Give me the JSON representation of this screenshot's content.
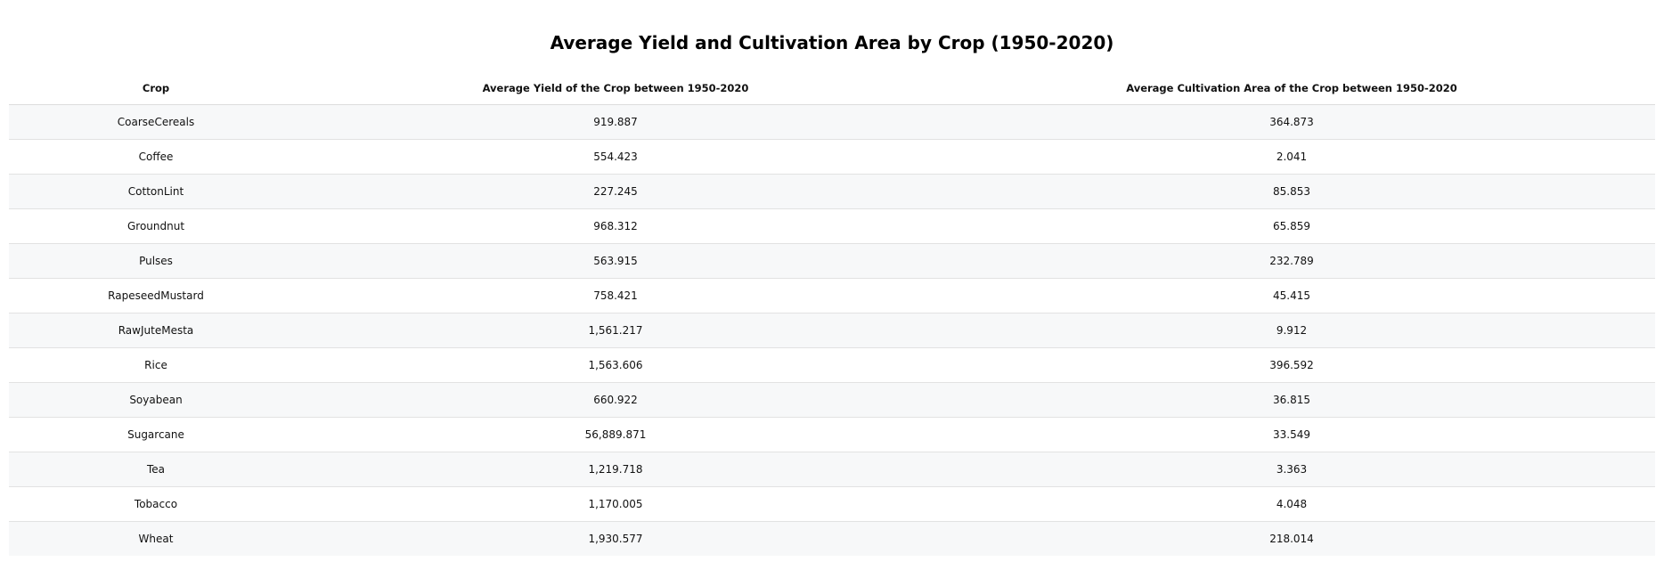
{
  "chart_data": {
    "type": "table",
    "title": "Average Yield and Cultivation Area by Crop (1950-2020)",
    "columns": [
      "Crop",
      "Average Yield of the Crop between 1950-2020",
      "Average Cultivation Area of the Crop between 1950-2020"
    ],
    "rows": [
      [
        "CoarseCereals",
        "919.887",
        "364.873"
      ],
      [
        "Coffee",
        "554.423",
        "2.041"
      ],
      [
        "CottonLint",
        "227.245",
        "85.853"
      ],
      [
        "Groundnut",
        "968.312",
        "65.859"
      ],
      [
        "Pulses",
        "563.915",
        "232.789"
      ],
      [
        "RapeseedMustard",
        "758.421",
        "45.415"
      ],
      [
        "RawJuteMesta",
        "1,561.217",
        "9.912"
      ],
      [
        "Rice",
        "1,563.606",
        "396.592"
      ],
      [
        "Soyabean",
        "660.922",
        "36.815"
      ],
      [
        "Sugarcane",
        "56,889.871",
        "33.549"
      ],
      [
        "Tea",
        "1,219.718",
        "3.363"
      ],
      [
        "Tobacco",
        "1,170.005",
        "4.048"
      ],
      [
        "Wheat",
        "1,930.577",
        "218.014"
      ]
    ]
  }
}
